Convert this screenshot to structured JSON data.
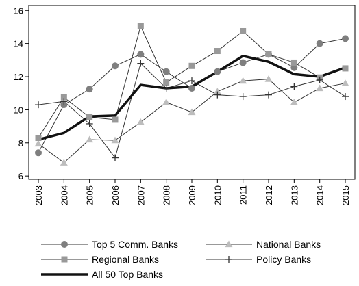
{
  "chart_data": {
    "type": "line",
    "title": "",
    "xlabel": "",
    "ylabel": "",
    "x": [
      "2003",
      "2004",
      "2005",
      "2006",
      "2007",
      "2008",
      "2009",
      "2010",
      "2011",
      "2012",
      "2013",
      "2014",
      "2015"
    ],
    "yticks": [
      "6",
      "8",
      "10",
      "12",
      "14",
      "16"
    ],
    "ylim": [
      5.8,
      16.3
    ],
    "grid": false,
    "legend_position": "bottom",
    "series": [
      {
        "name": "Top 5 Comm. Banks",
        "marker": "circle",
        "color": "#7f7f7f",
        "line_color": "#333333",
        "values": [
          7.4,
          10.3,
          11.25,
          12.65,
          13.35,
          12.3,
          11.3,
          12.3,
          12.85,
          13.35,
          12.55,
          14.0,
          14.3
        ]
      },
      {
        "name": "National Banks",
        "marker": "triangle",
        "color": "#bdbdbd",
        "line_color": "#333333",
        "values": [
          7.95,
          6.8,
          8.2,
          8.15,
          9.25,
          10.45,
          9.85,
          11.1,
          11.75,
          11.85,
          10.45,
          11.3,
          11.6
        ]
      },
      {
        "name": "Regional Banks",
        "marker": "square",
        "color": "#999999",
        "line_color": "#333333",
        "values": [
          8.3,
          10.75,
          9.55,
          9.4,
          15.05,
          11.65,
          12.65,
          13.55,
          14.75,
          13.35,
          12.85,
          11.95,
          12.5
        ]
      },
      {
        "name": "Policy Banks",
        "marker": "plus",
        "color": "#333333",
        "line_color": "#333333",
        "values": [
          10.3,
          10.5,
          9.15,
          7.1,
          12.8,
          11.3,
          11.75,
          10.9,
          10.8,
          10.9,
          11.4,
          11.8,
          10.8
        ]
      },
      {
        "name": "All 50 Top Banks",
        "marker": "none",
        "color": "#111111",
        "line_color": "#111111",
        "bold": true,
        "values": [
          8.2,
          8.6,
          9.6,
          9.65,
          11.5,
          11.3,
          11.4,
          12.3,
          13.25,
          12.9,
          12.15,
          12.0,
          12.55
        ]
      }
    ]
  }
}
